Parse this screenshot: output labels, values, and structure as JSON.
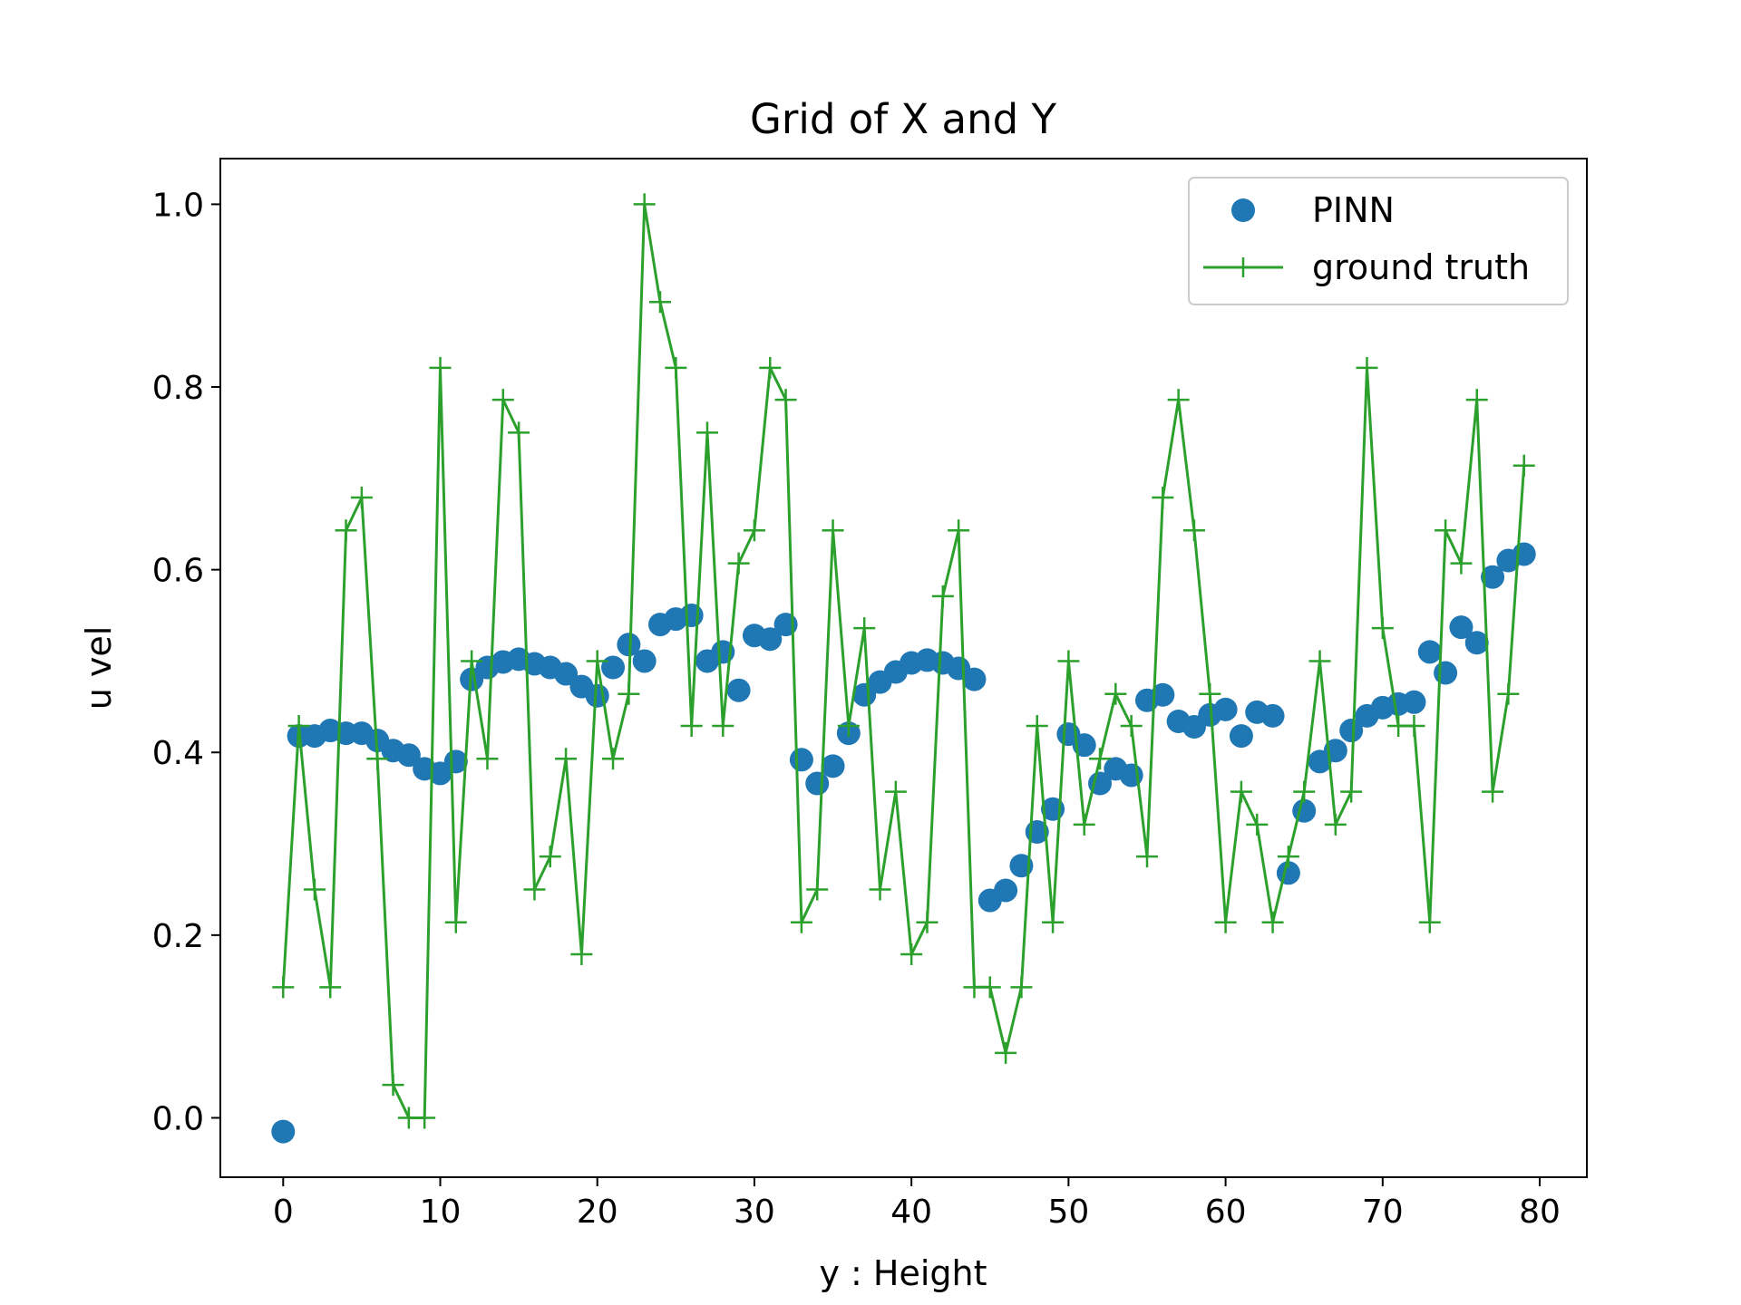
{
  "chart_data": {
    "type": "scatter",
    "title": "Grid of X and Y",
    "xlabel": "y : Height",
    "ylabel": "u vel",
    "xlim": [
      -4,
      83
    ],
    "ylim": [
      -0.065,
      1.05
    ],
    "xticks": [
      0,
      10,
      20,
      30,
      40,
      50,
      60,
      70,
      80
    ],
    "xtick_labels": [
      "0",
      "10",
      "20",
      "30",
      "40",
      "50",
      "60",
      "70",
      "80"
    ],
    "yticks": [
      0.0,
      0.2,
      0.4,
      0.6,
      0.8,
      1.0
    ],
    "ytick_labels": [
      "0.0",
      "0.2",
      "0.4",
      "0.6",
      "0.8",
      "1.0"
    ],
    "grid": false,
    "legend_position": "top-right",
    "series": [
      {
        "name": "PINN",
        "style": "scatter",
        "color": "#1f77b4",
        "x": [
          0,
          1,
          2,
          3,
          4,
          5,
          6,
          7,
          8,
          9,
          10,
          11,
          12,
          13,
          14,
          15,
          16,
          17,
          18,
          19,
          20,
          21,
          22,
          23,
          24,
          25,
          26,
          27,
          28,
          29,
          30,
          31,
          32,
          33,
          34,
          35,
          36,
          37,
          38,
          39,
          40,
          41,
          42,
          43,
          44,
          45,
          46,
          47,
          48,
          49,
          50,
          51,
          52,
          53,
          54,
          55,
          56,
          57,
          58,
          59,
          60,
          61,
          62,
          63,
          64,
          65,
          66,
          67,
          68,
          69,
          70,
          71,
          72,
          73,
          74,
          75,
          76,
          77,
          78,
          79
        ],
        "y": [
          -0.015,
          0.418,
          0.418,
          0.424,
          0.421,
          0.421,
          0.413,
          0.402,
          0.397,
          0.382,
          0.377,
          0.39,
          0.48,
          0.493,
          0.499,
          0.502,
          0.497,
          0.493,
          0.486,
          0.472,
          0.462,
          0.493,
          0.518,
          0.5,
          0.54,
          0.546,
          0.55,
          0.5,
          0.51,
          0.468,
          0.528,
          0.524,
          0.54,
          0.392,
          0.366,
          0.385,
          0.421,
          0.463,
          0.477,
          0.488,
          0.498,
          0.501,
          0.498,
          0.492,
          0.48,
          0.238,
          0.249,
          0.276,
          0.313,
          0.338,
          0.42,
          0.408,
          0.366,
          0.382,
          0.375,
          0.457,
          0.463,
          0.434,
          0.428,
          0.441,
          0.447,
          0.418,
          0.444,
          0.44,
          0.268,
          0.336,
          0.39,
          0.402,
          0.424,
          0.44,
          0.449,
          0.453,
          0.455,
          0.51,
          0.487,
          0.537,
          0.52,
          0.592,
          0.61,
          0.617
        ]
      },
      {
        "name": "ground truth",
        "style": "line+plus",
        "color": "#2ca02c",
        "x": [
          0,
          1,
          2,
          3,
          4,
          5,
          6,
          7,
          8,
          9,
          10,
          11,
          12,
          13,
          14,
          15,
          16,
          17,
          18,
          19,
          20,
          21,
          22,
          23,
          24,
          25,
          26,
          27,
          28,
          29,
          30,
          31,
          32,
          33,
          34,
          35,
          36,
          37,
          38,
          39,
          40,
          41,
          42,
          43,
          44,
          45,
          46,
          47,
          48,
          49,
          50,
          51,
          52,
          53,
          54,
          55,
          56,
          57,
          58,
          59,
          60,
          61,
          62,
          63,
          64,
          65,
          66,
          67,
          68,
          69,
          70,
          71,
          72,
          73,
          74,
          75,
          76,
          77,
          78,
          79
        ],
        "y": [
          0.143,
          0.429,
          0.25,
          0.143,
          0.643,
          0.679,
          0.393,
          0.036,
          0.0,
          0.0,
          0.821,
          0.214,
          0.5,
          0.393,
          0.786,
          0.75,
          0.25,
          0.286,
          0.393,
          0.179,
          0.5,
          0.393,
          0.464,
          1.0,
          0.893,
          0.821,
          0.429,
          0.75,
          0.429,
          0.607,
          0.643,
          0.821,
          0.786,
          0.214,
          0.25,
          0.643,
          0.429,
          0.536,
          0.25,
          0.357,
          0.179,
          0.214,
          0.571,
          0.643,
          0.143,
          0.143,
          0.071,
          0.143,
          0.429,
          0.214,
          0.5,
          0.321,
          0.393,
          0.464,
          0.429,
          0.286,
          0.679,
          0.786,
          0.643,
          0.464,
          0.214,
          0.357,
          0.321,
          0.214,
          0.286,
          0.357,
          0.5,
          0.321,
          0.357,
          0.821,
          0.536,
          0.429,
          0.429,
          0.214,
          0.643,
          0.607,
          0.786,
          0.357,
          0.464,
          0.714
        ]
      }
    ]
  }
}
